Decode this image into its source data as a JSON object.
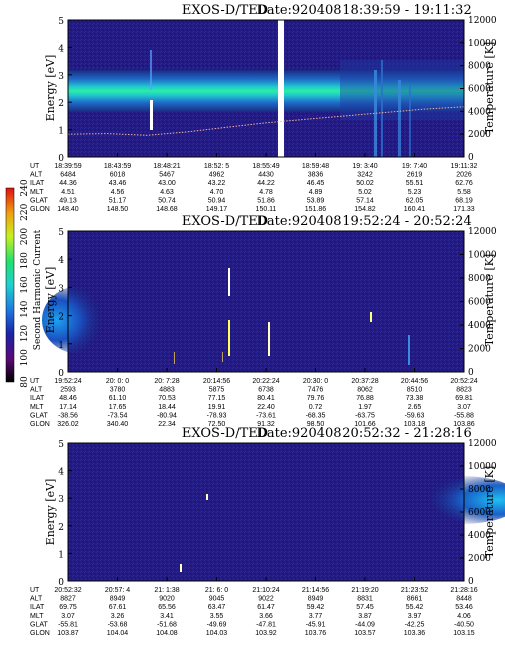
{
  "chart_data": [
    {
      "type": "heatmap",
      "title": "EXOS-D/TED",
      "date": "Date:920408",
      "time_range": "18:39:59 - 19:11:32",
      "ylabel": "Energy [eV]",
      "y2label": "Temperature [K]",
      "ylim": [
        0,
        5
      ],
      "y2lim": [
        0,
        12000
      ],
      "yticks": [
        "0",
        "1",
        "2",
        "3",
        "4",
        "5"
      ],
      "y2ticks": [
        "0",
        "2000",
        "4000",
        "6000",
        "8000",
        "10000",
        "12000"
      ],
      "row_labels": [
        "UT",
        "ALT",
        "ILAT",
        "MLT",
        "GLAT",
        "GLON"
      ],
      "columns": [
        [
          "18:39:59",
          "6484",
          "44.36",
          "4.51",
          "49.13",
          "148.40"
        ],
        [
          "18:43:59",
          "6018",
          "43.46",
          "4.56",
          "51.17",
          "148.50"
        ],
        [
          "18:48:21",
          "5467",
          "43.00",
          "4.63",
          "50.74",
          "148.68"
        ],
        [
          "18:52: 5",
          "4962",
          "43.22",
          "4.70",
          "50.94",
          "149.17"
        ],
        [
          "18:55:49",
          "4430",
          "44.22",
          "4.78",
          "51.86",
          "150.11"
        ],
        [
          "18:59:48",
          "3836",
          "46.45",
          "4.89",
          "53.89",
          "151.86"
        ],
        [
          "19: 3:40",
          "3242",
          "50.02",
          "5.02",
          "57.14",
          "154.82"
        ],
        [
          "19: 7:40",
          "2619",
          "55.51",
          "5.23",
          "62.05",
          "160.41"
        ],
        [
          "19:11:32",
          "2026",
          "62.76",
          "5.58",
          "68.19",
          "171.33"
        ]
      ],
      "gap_fraction": 0.51,
      "band_center_ev": 2.45,
      "temperature_trace": [
        [
          0,
          2000
        ],
        [
          0.1,
          2050
        ],
        [
          0.2,
          1900
        ],
        [
          0.3,
          2200
        ],
        [
          0.4,
          2600
        ],
        [
          0.5,
          3000
        ],
        [
          0.6,
          3300
        ],
        [
          0.7,
          3600
        ],
        [
          0.8,
          3900
        ],
        [
          0.9,
          4200
        ],
        [
          1.0,
          4400
        ]
      ]
    },
    {
      "type": "heatmap",
      "title": "EXOS-D/TED",
      "date": "Date:920408",
      "time_range": "19:52:24 - 20:52:24",
      "ylabel": "Energy [eV]",
      "y2label": "Temperature [K]",
      "ylim": [
        0,
        5
      ],
      "y2lim": [
        0,
        12000
      ],
      "yticks": [
        "0",
        "1",
        "2",
        "3",
        "4",
        "5"
      ],
      "y2ticks": [
        "0",
        "2000",
        "4000",
        "6000",
        "8000",
        "10000",
        "12000"
      ],
      "row_labels": [
        "UT",
        "ALT",
        "ILAT",
        "MLT",
        "GLAT",
        "GLON"
      ],
      "columns": [
        [
          "19:52:24",
          "2593",
          "48.46",
          "17.14",
          "-38.56",
          "326.02"
        ],
        [
          "20: 0: 0",
          "3780",
          "61.10",
          "17.65",
          "-73.54",
          "340.40"
        ],
        [
          "20: 7:28",
          "4883",
          "70.53",
          "18.44",
          "-80.94",
          "22.34"
        ],
        [
          "20:14:56",
          "5875",
          "77.15",
          "19.91",
          "-78.93",
          "72.50"
        ],
        [
          "20:22:24",
          "6738",
          "80.41",
          "22.40",
          "-73.61",
          "91.32"
        ],
        [
          "20:30: 0",
          "7476",
          "79.76",
          "0.72",
          "-68.35",
          "98.50"
        ],
        [
          "20:37:28",
          "8062",
          "76.88",
          "1.97",
          "-63.75",
          "101.66"
        ],
        [
          "20:44:56",
          "8510",
          "73.38",
          "2.65",
          "-59.63",
          "103.18"
        ],
        [
          "20:52:24",
          "8823",
          "69.81",
          "3.07",
          "-55.88",
          "103.86"
        ]
      ],
      "colorbar": {
        "label": "Second Harmonic Current",
        "ticks": [
          "80",
          "100",
          "120",
          "140",
          "160",
          "180",
          "200",
          "220",
          "240"
        ]
      }
    },
    {
      "type": "heatmap",
      "title": "EXOS-D/TED",
      "date": "Date:920408",
      "time_range": "20:52:32 - 21:28:16",
      "ylabel": "Energy [eV]",
      "y2label": "Temperature [K]",
      "ylim": [
        0,
        5
      ],
      "y2lim": [
        0,
        12000
      ],
      "yticks": [
        "0",
        "1",
        "2",
        "3",
        "4",
        "5"
      ],
      "y2ticks": [
        "0",
        "2000",
        "4000",
        "6000",
        "8000",
        "10000",
        "12000"
      ],
      "row_labels": [
        "UT",
        "ALT",
        "ILAT",
        "MLT",
        "GLAT",
        "GLON"
      ],
      "columns": [
        [
          "20:52:32",
          "8827",
          "69.75",
          "3.07",
          "-55.81",
          "103.87"
        ],
        [
          "20:57: 4",
          "8949",
          "67.61",
          "3.26",
          "-53.68",
          "104.04"
        ],
        [
          "21: 1:38",
          "9020",
          "65.56",
          "3.41",
          "-51.68",
          "104.08"
        ],
        [
          "21: 6: 0",
          "9045",
          "63.47",
          "3.55",
          "-49.69",
          "104.03"
        ],
        [
          "21:10:24",
          "9022",
          "61.47",
          "3.66",
          "-47.81",
          "103.92"
        ],
        [
          "21:14:56",
          "8949",
          "59.42",
          "3.77",
          "-45.91",
          "103.76"
        ],
        [
          "21:19:20",
          "8831",
          "57.45",
          "3.87",
          "-44.09",
          "103.57"
        ],
        [
          "21:23:52",
          "8661",
          "55.42",
          "3.97",
          "-42.25",
          "103.36"
        ],
        [
          "21:28:16",
          "8448",
          "53.46",
          "4.06",
          "-40.50",
          "103.15"
        ]
      ]
    }
  ]
}
